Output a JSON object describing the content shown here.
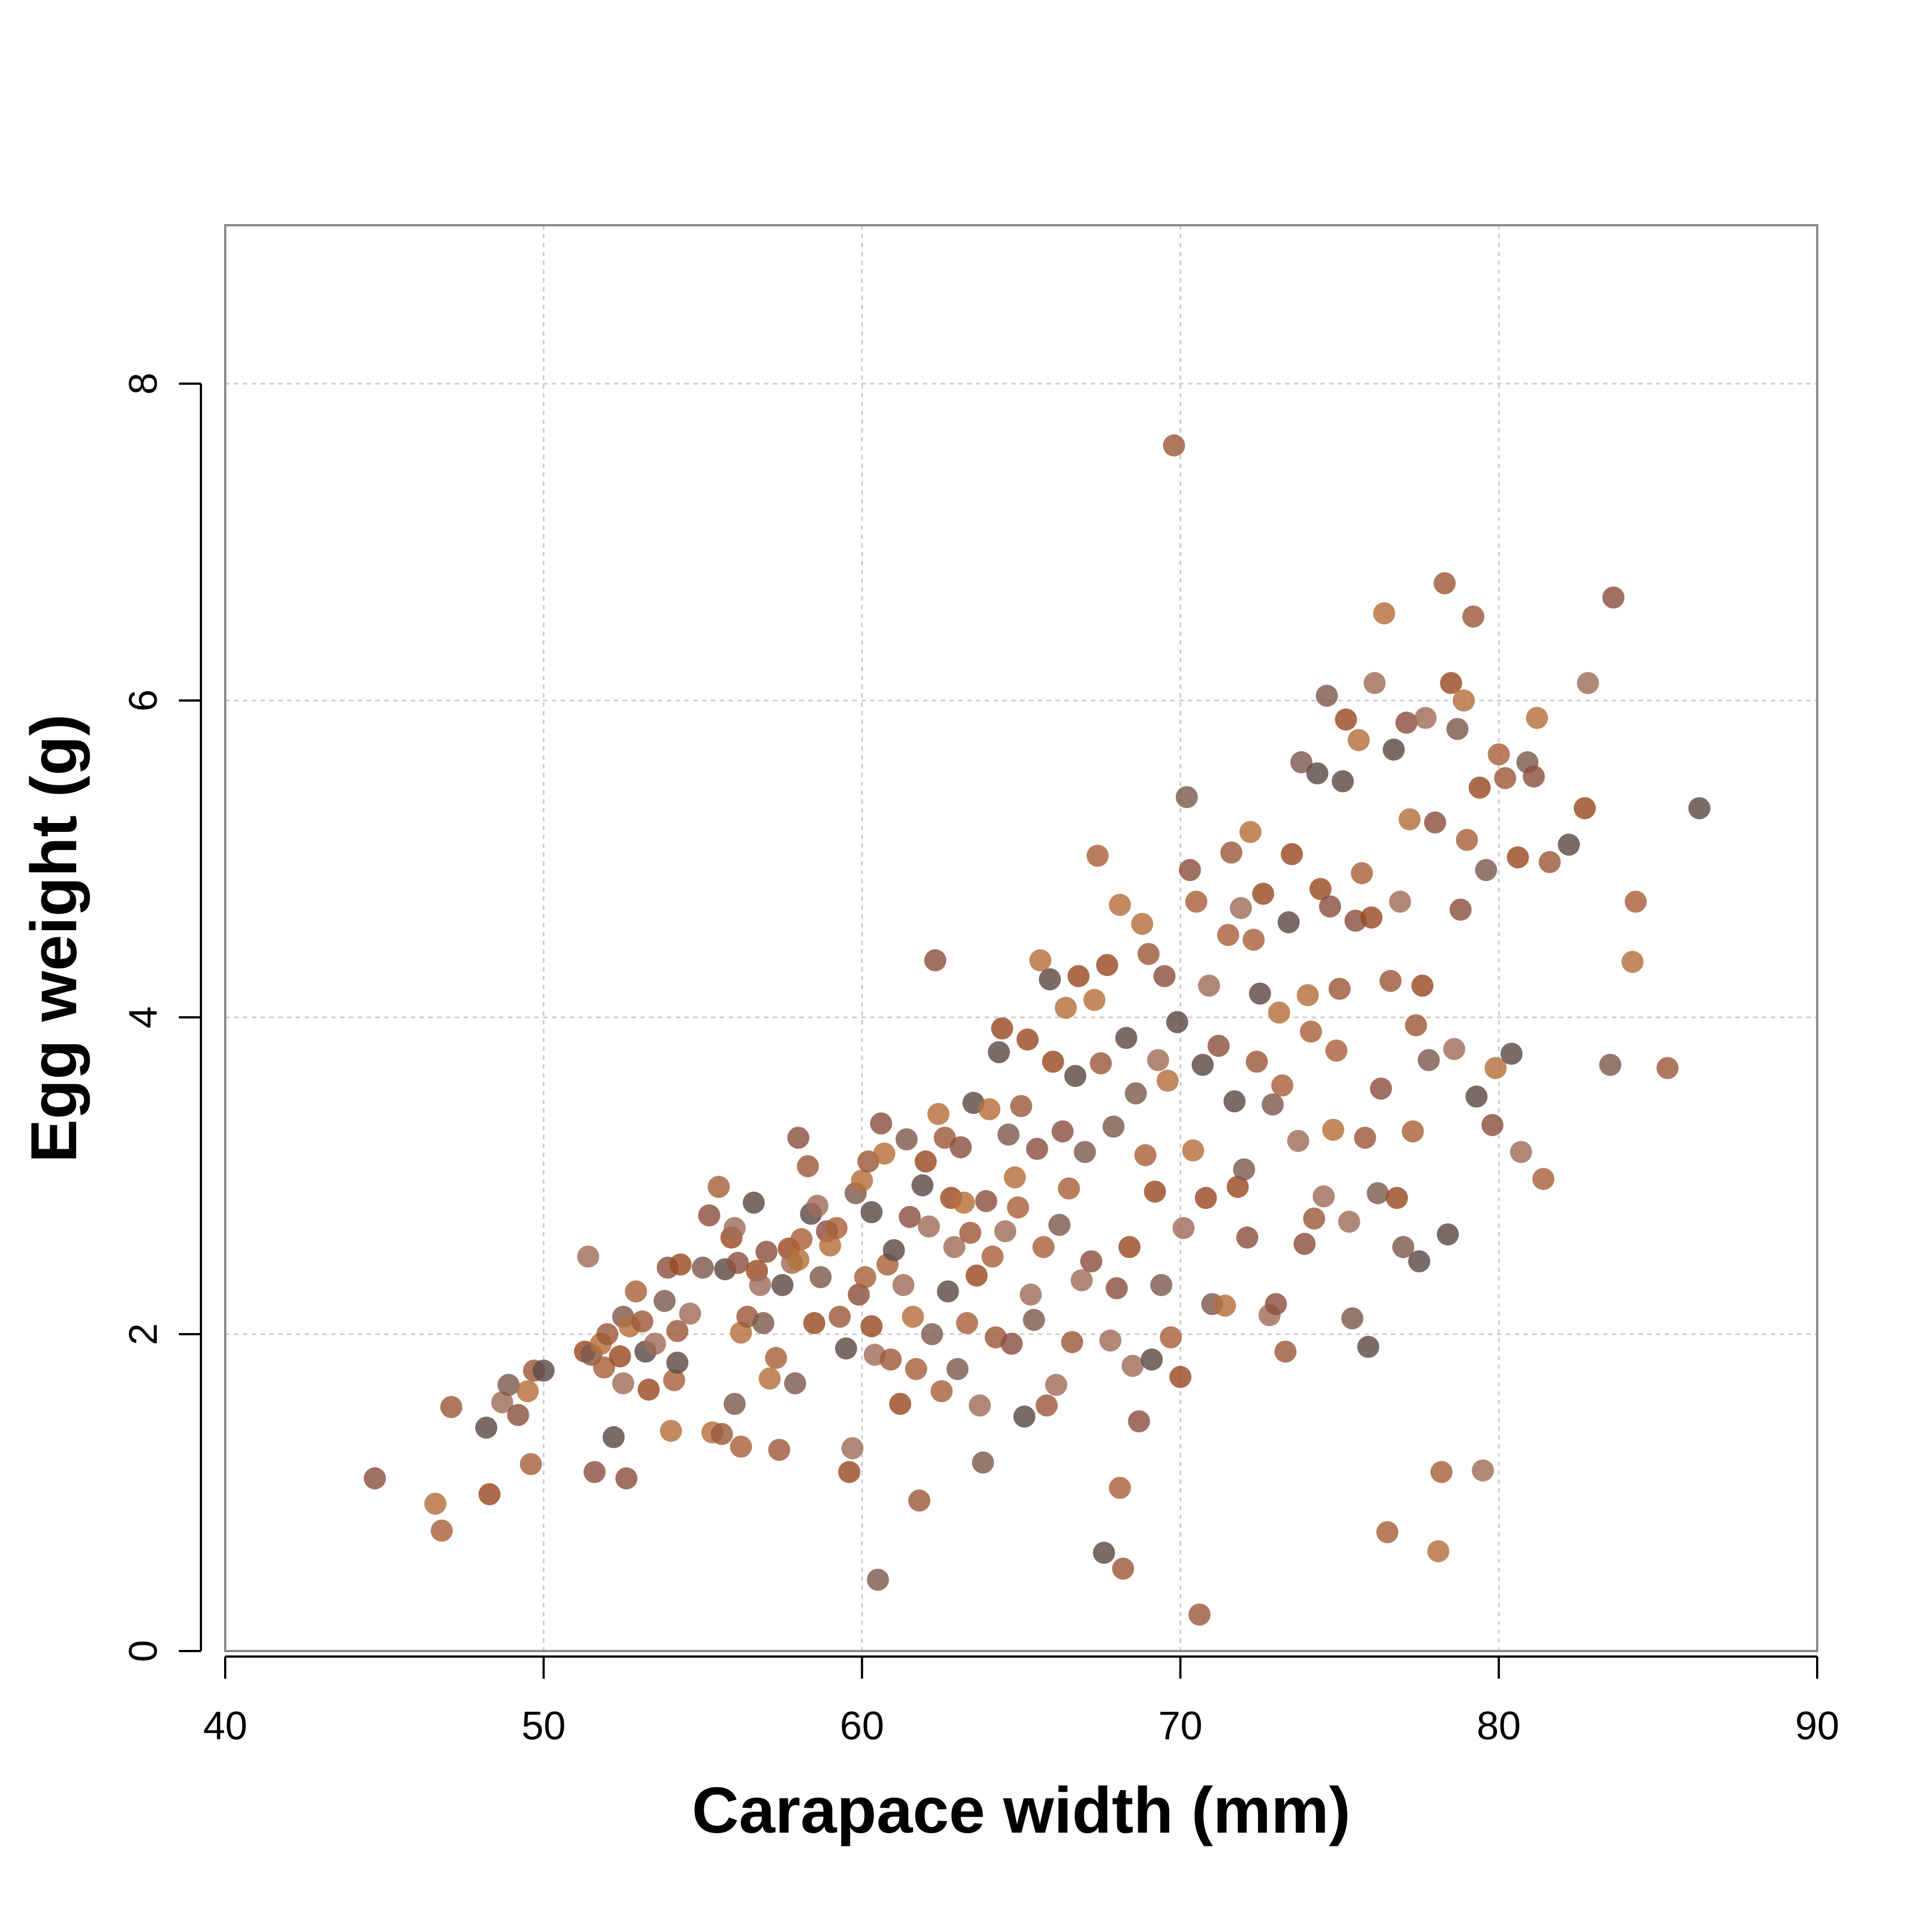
{
  "chart_data": {
    "type": "scatter",
    "title": "",
    "xlabel": "Carapace width (mm)",
    "ylabel": "Egg weight (g)",
    "xlim": [
      40,
      90
    ],
    "ylim": [
      0,
      9
    ],
    "xticks": [
      40,
      50,
      60,
      70,
      80,
      90
    ],
    "yticks": [
      0,
      2,
      4,
      6,
      8
    ],
    "xtick_labels": [
      "40",
      "50",
      "60",
      "70",
      "80",
      "90"
    ],
    "ytick_labels": [
      "0",
      "2",
      "4",
      "6",
      "8"
    ],
    "grid": true,
    "legend": "none",
    "colors": [
      "#9c5a3c",
      "#a8623a",
      "#b4703a",
      "#8c5040",
      "#7e5a4e",
      "#a06e5a",
      "#9a4a22",
      "#5e4a46"
    ],
    "points": [
      [
        44.7,
        1.09
      ],
      [
        46.6,
        0.93
      ],
      [
        46.8,
        0.76
      ],
      [
        47.1,
        1.54
      ],
      [
        48.2,
        1.41
      ],
      [
        48.3,
        0.99
      ],
      [
        48.7,
        1.57
      ],
      [
        48.9,
        1.68
      ],
      [
        49.2,
        1.49
      ],
      [
        49.5,
        1.64
      ],
      [
        49.6,
        1.18
      ],
      [
        49.7,
        1.77
      ],
      [
        50.0,
        1.77
      ],
      [
        51.3,
        1.89
      ],
      [
        51.4,
        2.49
      ],
      [
        51.5,
        1.87
      ],
      [
        51.6,
        1.13
      ],
      [
        51.8,
        1.94
      ],
      [
        51.9,
        1.79
      ],
      [
        52.0,
        2.0
      ],
      [
        52.2,
        1.35
      ],
      [
        52.4,
        1.86
      ],
      [
        52.5,
        1.69
      ],
      [
        52.5,
        2.11
      ],
      [
        52.6,
        1.09
      ],
      [
        52.7,
        2.05
      ],
      [
        52.9,
        2.27
      ],
      [
        53.1,
        2.08
      ],
      [
        53.2,
        1.89
      ],
      [
        53.3,
        1.65
      ],
      [
        53.5,
        1.94
      ],
      [
        53.8,
        2.21
      ],
      [
        53.9,
        2.42
      ],
      [
        54.0,
        1.39
      ],
      [
        54.1,
        1.71
      ],
      [
        54.2,
        2.02
      ],
      [
        54.2,
        1.82
      ],
      [
        54.3,
        2.44
      ],
      [
        54.6,
        2.13
      ],
      [
        55.0,
        2.42
      ],
      [
        55.2,
        2.75
      ],
      [
        55.3,
        1.38
      ],
      [
        55.5,
        2.93
      ],
      [
        55.6,
        1.37
      ],
      [
        55.7,
        2.41
      ],
      [
        55.9,
        2.61
      ],
      [
        56.0,
        2.67
      ],
      [
        56.0,
        1.56
      ],
      [
        56.1,
        2.45
      ],
      [
        56.2,
        2.01
      ],
      [
        56.2,
        1.29
      ],
      [
        56.4,
        2.11
      ],
      [
        56.6,
        2.83
      ],
      [
        56.7,
        2.4
      ],
      [
        56.8,
        2.31
      ],
      [
        56.9,
        2.07
      ],
      [
        57.0,
        2.52
      ],
      [
        57.1,
        1.72
      ],
      [
        57.3,
        1.85
      ],
      [
        57.4,
        1.27
      ],
      [
        57.5,
        2.31
      ],
      [
        57.7,
        2.54
      ],
      [
        57.8,
        2.45
      ],
      [
        57.9,
        1.69
      ],
      [
        58.0,
        3.24
      ],
      [
        58.0,
        2.47
      ],
      [
        58.1,
        2.6
      ],
      [
        58.3,
        3.06
      ],
      [
        58.4,
        2.76
      ],
      [
        58.5,
        2.07
      ],
      [
        58.6,
        2.81
      ],
      [
        58.7,
        2.36
      ],
      [
        58.9,
        2.65
      ],
      [
        59.0,
        2.56
      ],
      [
        59.2,
        2.67
      ],
      [
        59.3,
        2.11
      ],
      [
        59.5,
        1.91
      ],
      [
        59.6,
        1.13
      ],
      [
        59.7,
        1.28
      ],
      [
        59.8,
        2.89
      ],
      [
        59.9,
        2.25
      ],
      [
        60.0,
        2.97
      ],
      [
        60.1,
        2.36
      ],
      [
        60.2,
        3.09
      ],
      [
        60.3,
        2.77
      ],
      [
        60.3,
        2.05
      ],
      [
        60.4,
        1.87
      ],
      [
        60.5,
        0.45
      ],
      [
        60.6,
        3.33
      ],
      [
        60.7,
        3.14
      ],
      [
        60.8,
        2.44
      ],
      [
        60.9,
        1.84
      ],
      [
        61.0,
        2.53
      ],
      [
        61.2,
        1.56
      ],
      [
        61.3,
        2.31
      ],
      [
        61.4,
        3.23
      ],
      [
        61.5,
        2.74
      ],
      [
        61.6,
        2.11
      ],
      [
        61.7,
        1.78
      ],
      [
        61.8,
        0.95
      ],
      [
        61.9,
        2.94
      ],
      [
        62.0,
        3.09
      ],
      [
        62.1,
        2.68
      ],
      [
        62.2,
        2.0
      ],
      [
        62.3,
        4.36
      ],
      [
        62.4,
        3.39
      ],
      [
        62.5,
        1.64
      ],
      [
        62.6,
        3.24
      ],
      [
        62.7,
        2.27
      ],
      [
        62.8,
        2.86
      ],
      [
        62.9,
        2.55
      ],
      [
        63.0,
        1.78
      ],
      [
        63.1,
        3.18
      ],
      [
        63.2,
        2.83
      ],
      [
        63.3,
        2.07
      ],
      [
        63.4,
        2.64
      ],
      [
        63.5,
        3.46
      ],
      [
        63.6,
        2.37
      ],
      [
        63.7,
        1.55
      ],
      [
        63.8,
        1.19
      ],
      [
        63.9,
        2.84
      ],
      [
        64.0,
        3.42
      ],
      [
        64.1,
        2.49
      ],
      [
        64.2,
        1.98
      ],
      [
        64.3,
        3.78
      ],
      [
        64.4,
        3.93
      ],
      [
        64.5,
        2.65
      ],
      [
        64.6,
        3.26
      ],
      [
        64.7,
        1.94
      ],
      [
        64.8,
        2.99
      ],
      [
        64.9,
        2.8
      ],
      [
        65.0,
        3.44
      ],
      [
        65.1,
        1.48
      ],
      [
        65.2,
        3.86
      ],
      [
        65.3,
        2.25
      ],
      [
        65.4,
        2.09
      ],
      [
        65.5,
        3.17
      ],
      [
        65.6,
        4.36
      ],
      [
        65.7,
        2.55
      ],
      [
        65.8,
        1.55
      ],
      [
        65.9,
        4.24
      ],
      [
        66.0,
        3.72
      ],
      [
        66.1,
        1.68
      ],
      [
        66.2,
        2.69
      ],
      [
        66.3,
        3.28
      ],
      [
        66.4,
        4.06
      ],
      [
        66.5,
        2.92
      ],
      [
        66.6,
        1.95
      ],
      [
        66.7,
        3.63
      ],
      [
        66.8,
        4.26
      ],
      [
        66.9,
        2.34
      ],
      [
        67.0,
        3.15
      ],
      [
        67.2,
        2.46
      ],
      [
        67.3,
        4.11
      ],
      [
        67.4,
        5.02
      ],
      [
        67.5,
        3.71
      ],
      [
        67.6,
        0.62
      ],
      [
        67.7,
        4.33
      ],
      [
        67.8,
        1.96
      ],
      [
        67.9,
        3.31
      ],
      [
        68.0,
        2.29
      ],
      [
        68.1,
        4.71
      ],
      [
        68.1,
        1.03
      ],
      [
        68.2,
        0.52
      ],
      [
        68.3,
        3.87
      ],
      [
        68.4,
        2.55
      ],
      [
        68.5,
        1.8
      ],
      [
        68.6,
        3.52
      ],
      [
        68.7,
        1.45
      ],
      [
        68.8,
        4.59
      ],
      [
        68.9,
        3.13
      ],
      [
        69.0,
        4.4
      ],
      [
        69.1,
        1.84
      ],
      [
        69.2,
        2.9
      ],
      [
        69.3,
        3.73
      ],
      [
        69.4,
        2.31
      ],
      [
        69.5,
        4.26
      ],
      [
        69.6,
        3.6
      ],
      [
        69.7,
        1.98
      ],
      [
        69.8,
        7.61
      ],
      [
        69.9,
        3.97
      ],
      [
        70.0,
        1.73
      ],
      [
        70.1,
        2.67
      ],
      [
        70.2,
        5.39
      ],
      [
        70.3,
        4.93
      ],
      [
        70.4,
        3.16
      ],
      [
        70.5,
        4.73
      ],
      [
        70.6,
        0.23
      ],
      [
        70.7,
        3.7
      ],
      [
        70.8,
        2.86
      ],
      [
        70.9,
        4.2
      ],
      [
        71.0,
        2.19
      ],
      [
        71.2,
        3.82
      ],
      [
        71.4,
        2.18
      ],
      [
        71.5,
        4.52
      ],
      [
        71.6,
        5.04
      ],
      [
        71.7,
        3.47
      ],
      [
        71.8,
        2.93
      ],
      [
        71.9,
        4.69
      ],
      [
        72.0,
        3.04
      ],
      [
        72.1,
        2.61
      ],
      [
        72.2,
        5.17
      ],
      [
        72.3,
        4.49
      ],
      [
        72.4,
        3.72
      ],
      [
        72.5,
        4.15
      ],
      [
        72.6,
        4.78
      ],
      [
        72.8,
        2.12
      ],
      [
        72.9,
        3.45
      ],
      [
        73.0,
        2.19
      ],
      [
        73.1,
        4.03
      ],
      [
        73.2,
        3.57
      ],
      [
        73.3,
        1.89
      ],
      [
        73.4,
        4.6
      ],
      [
        73.5,
        5.03
      ],
      [
        73.7,
        3.22
      ],
      [
        73.8,
        5.61
      ],
      [
        73.9,
        2.57
      ],
      [
        74.0,
        4.14
      ],
      [
        74.1,
        3.91
      ],
      [
        74.2,
        2.73
      ],
      [
        74.3,
        5.54
      ],
      [
        74.4,
        4.81
      ],
      [
        74.5,
        2.87
      ],
      [
        74.6,
        6.03
      ],
      [
        74.7,
        4.7
      ],
      [
        74.8,
        3.29
      ],
      [
        74.9,
        3.79
      ],
      [
        75.0,
        4.18
      ],
      [
        75.1,
        5.49
      ],
      [
        75.2,
        5.88
      ],
      [
        75.3,
        2.71
      ],
      [
        75.4,
        2.1
      ],
      [
        75.5,
        4.61
      ],
      [
        75.6,
        5.75
      ],
      [
        75.7,
        4.91
      ],
      [
        75.8,
        3.24
      ],
      [
        75.9,
        1.92
      ],
      [
        76.0,
        4.63
      ],
      [
        76.1,
        6.11
      ],
      [
        76.2,
        2.89
      ],
      [
        76.3,
        3.55
      ],
      [
        76.4,
        6.55
      ],
      [
        76.5,
        0.75
      ],
      [
        76.6,
        4.23
      ],
      [
        76.7,
        5.69
      ],
      [
        76.8,
        2.86
      ],
      [
        76.9,
        4.73
      ],
      [
        77.0,
        2.55
      ],
      [
        77.1,
        5.86
      ],
      [
        77.2,
        5.25
      ],
      [
        77.3,
        3.28
      ],
      [
        77.4,
        3.95
      ],
      [
        77.5,
        2.46
      ],
      [
        77.6,
        4.2
      ],
      [
        77.7,
        5.89
      ],
      [
        77.8,
        3.73
      ],
      [
        78.0,
        5.23
      ],
      [
        78.1,
        0.63
      ],
      [
        78.2,
        1.13
      ],
      [
        78.3,
        6.74
      ],
      [
        78.4,
        2.63
      ],
      [
        78.5,
        6.11
      ],
      [
        78.6,
        3.8
      ],
      [
        78.7,
        5.82
      ],
      [
        78.8,
        4.68
      ],
      [
        78.9,
        6.0
      ],
      [
        79.0,
        5.12
      ],
      [
        79.2,
        6.53
      ],
      [
        79.3,
        3.5
      ],
      [
        79.4,
        5.45
      ],
      [
        79.5,
        1.14
      ],
      [
        79.6,
        4.93
      ],
      [
        79.8,
        3.32
      ],
      [
        79.9,
        3.68
      ],
      [
        80.0,
        5.66
      ],
      [
        80.2,
        5.51
      ],
      [
        80.4,
        3.77
      ],
      [
        80.6,
        5.01
      ],
      [
        80.7,
        3.15
      ],
      [
        80.9,
        5.61
      ],
      [
        81.1,
        5.52
      ],
      [
        81.2,
        5.89
      ],
      [
        81.4,
        2.98
      ],
      [
        81.6,
        4.98
      ],
      [
        82.2,
        5.09
      ],
      [
        82.7,
        5.32
      ],
      [
        82.8,
        6.11
      ],
      [
        83.5,
        3.7
      ],
      [
        83.6,
        6.65
      ],
      [
        84.2,
        4.35
      ],
      [
        84.3,
        4.73
      ],
      [
        85.3,
        3.68
      ],
      [
        86.3,
        5.32
      ]
    ]
  }
}
